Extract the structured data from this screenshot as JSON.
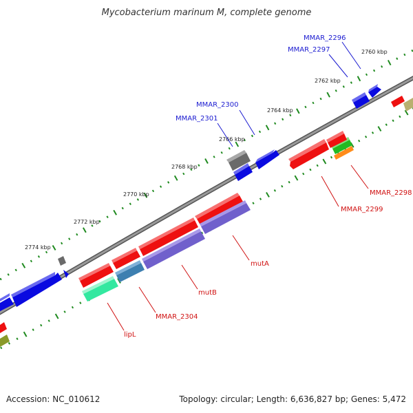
{
  "title": "Mycobacterium marinum M, complete genome",
  "colors": {
    "backbone": "#777777",
    "tick": "#1f8a1f",
    "label_forward": "#1a1ad0",
    "label_reverse": "#d01010",
    "gene_blue": "#0a0ae0",
    "gene_red": "#ee1010",
    "gene_gray": "#6a6a6a",
    "gene_green": "#22bb22",
    "gene_orange": "#ff8c1a",
    "gene_purple": "#7060cc",
    "gene_steel": "#3d7fb0",
    "gene_mint": "#33e8a0",
    "gene_olive": "#8a9a2a",
    "gene_khaki": "#b8b070"
  },
  "scale_labels": [
    "2760 kbp",
    "2762 kbp",
    "2764 kbp",
    "2766 kbp",
    "2768 kbp",
    "2770 kbp",
    "2772 kbp",
    "2774 kbp"
  ],
  "forward_labels": [
    "MMAR_2296",
    "MMAR_2297",
    "MMAR_2300",
    "MMAR_2301"
  ],
  "reverse_labels": [
    "MMAR_2298",
    "MMAR_2299",
    "mutA",
    "mutB",
    "MMAR_2304",
    "lipL"
  ],
  "footer": {
    "accession": "Accession: NC_010612",
    "summary": "Topology: circular; Length: 6,636,827 bp; Genes: 5,472"
  }
}
